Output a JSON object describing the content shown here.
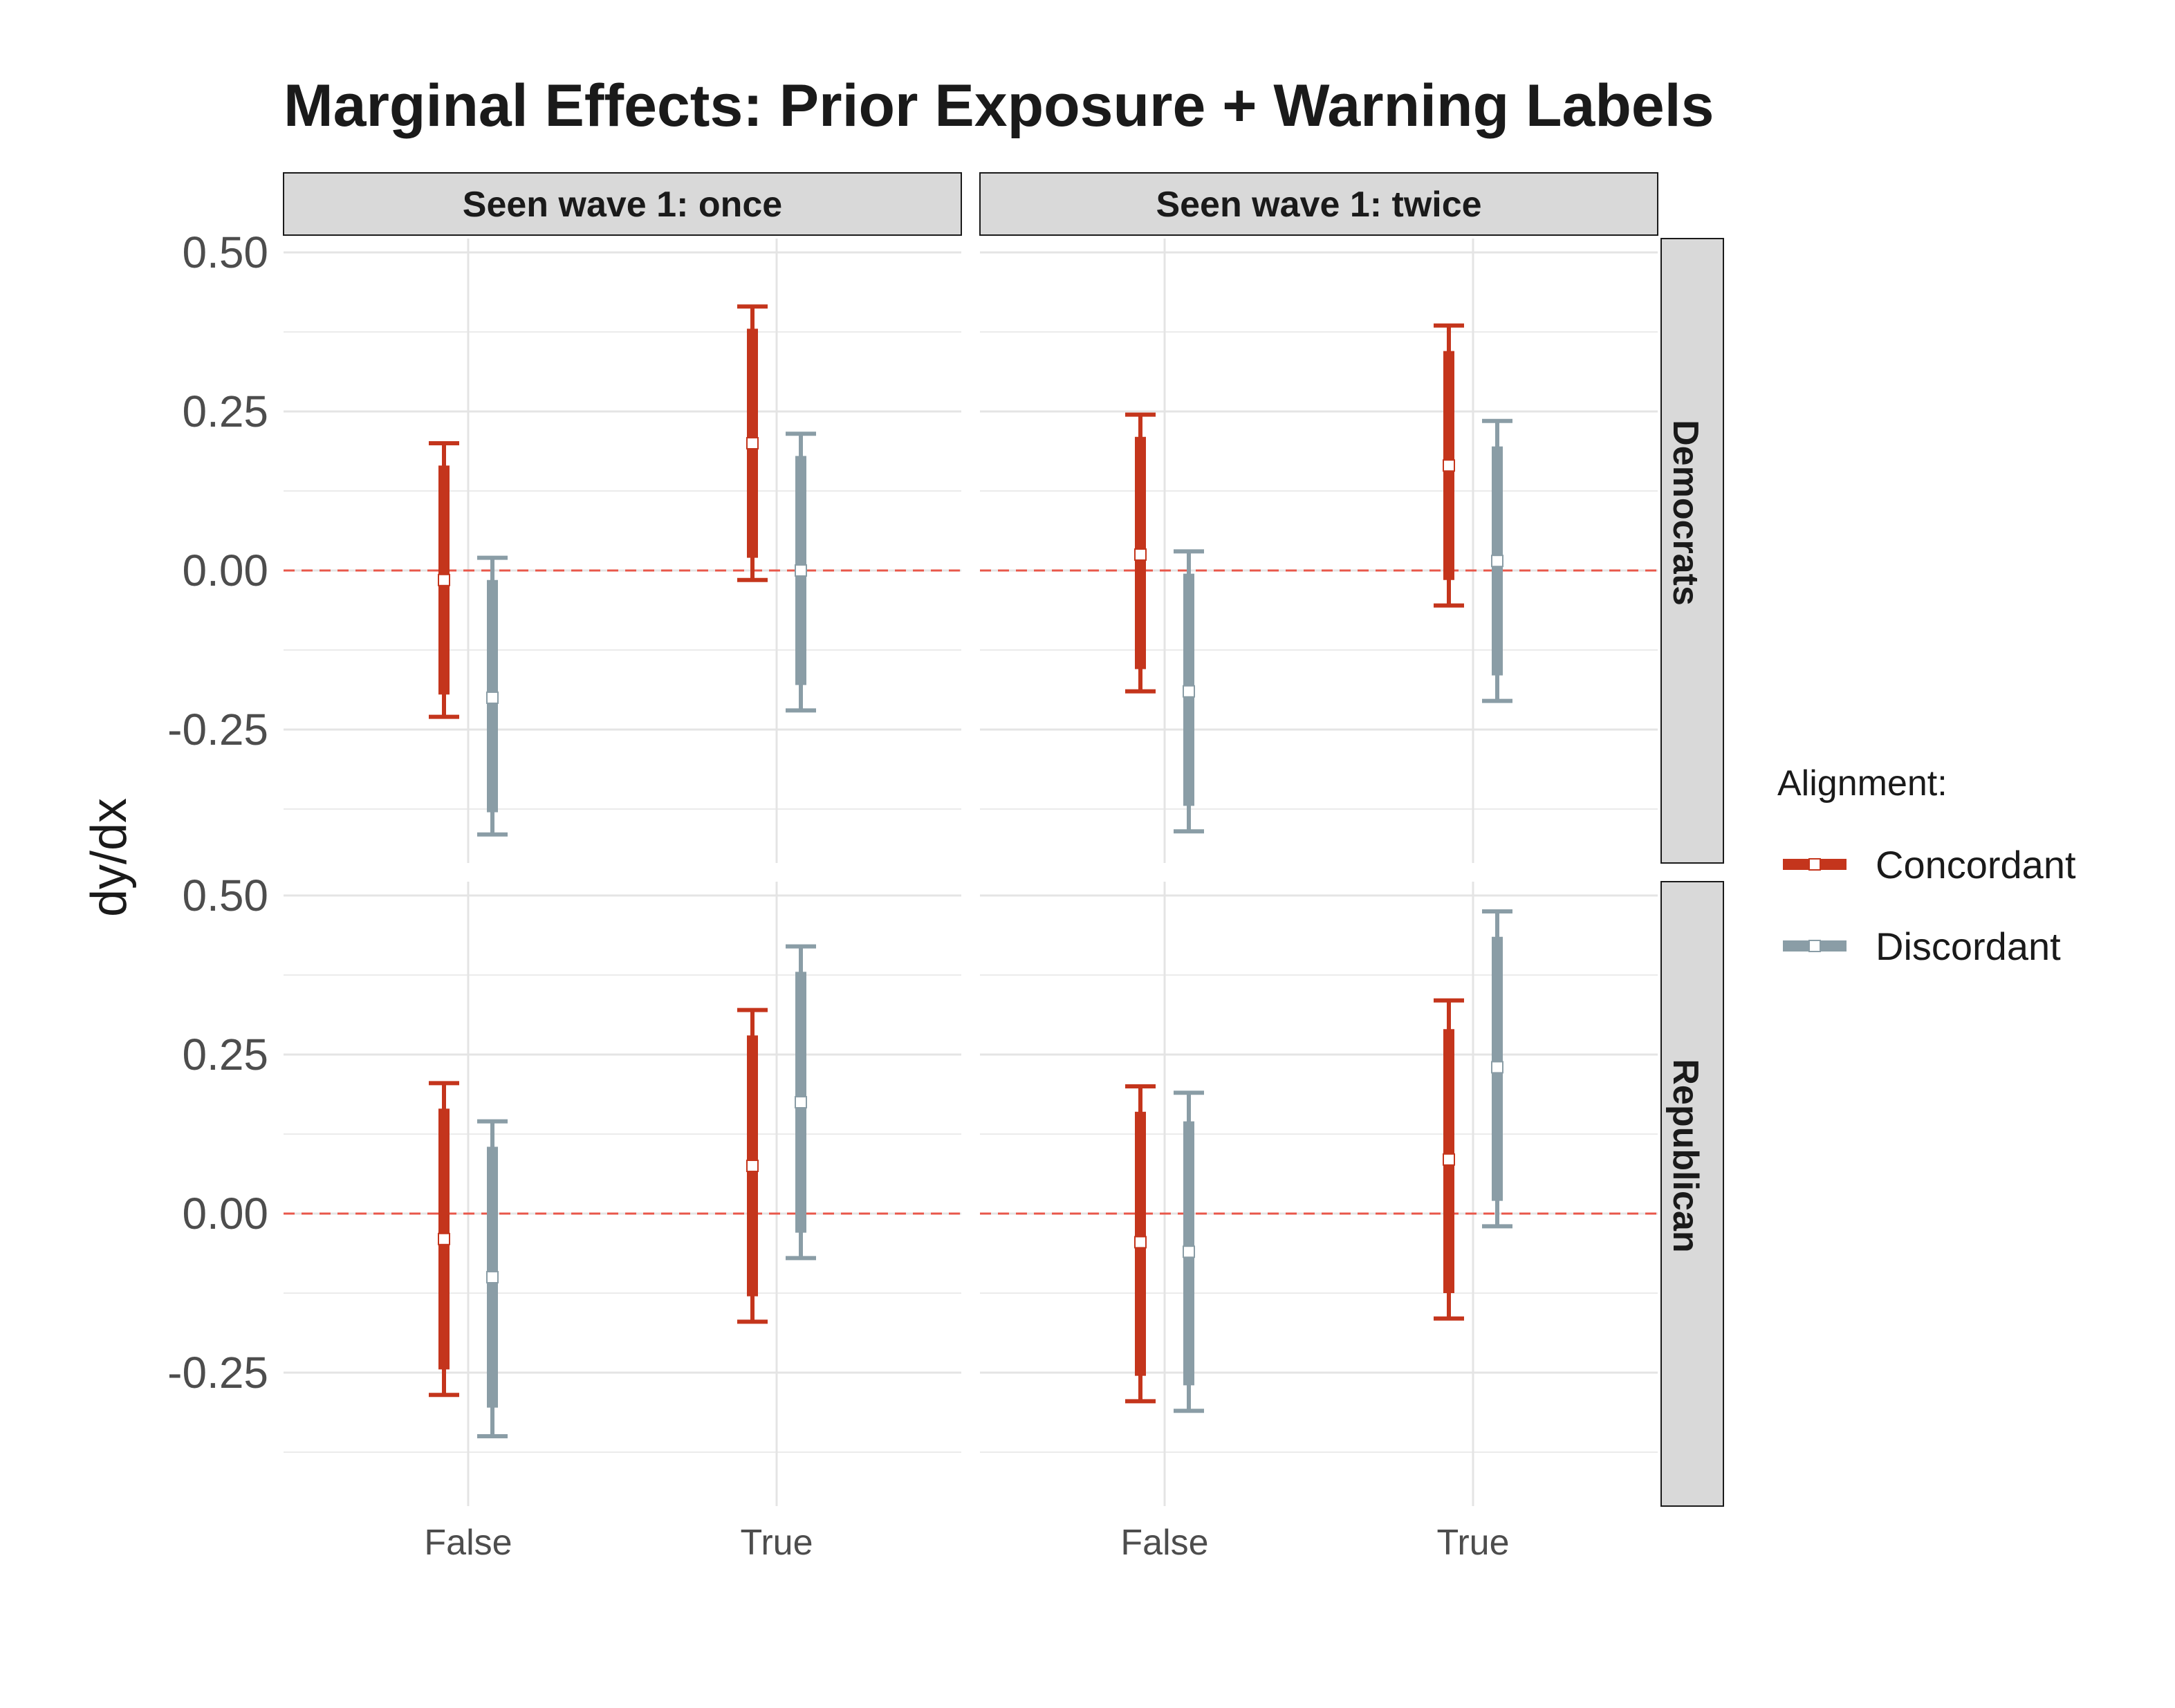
{
  "chart_data": {
    "type": "errorbar",
    "title": "Marginal Effects: Prior Exposure + Warning Labels",
    "ylabel": "dy/dx",
    "xlabel": "",
    "categories": [
      "False",
      "True"
    ],
    "y_ticks": [
      "0.50",
      "0.25",
      "0.00",
      "-0.25"
    ],
    "ylim": [
      -0.43,
      0.52
    ],
    "reference_line": 0,
    "column_facets": [
      "Seen wave 1: once",
      "Seen wave 1: twice"
    ],
    "row_facets": [
      "Democrats",
      "Republican"
    ],
    "legend": {
      "title": "Alignment:",
      "placement": "right",
      "entries": [
        "Concordant",
        "Discordant"
      ]
    },
    "colors": {
      "Concordant": "#c4351c",
      "Discordant": "#8a9da6",
      "reference": "#e8574a"
    },
    "panels": [
      {
        "row": "Democrats",
        "col": "Seen wave 1: once",
        "series": [
          {
            "name": "Concordant",
            "points": [
              {
                "x": "False",
                "est": -0.015,
                "ci90": [
                  -0.195,
                  0.165
                ],
                "ci95": [
                  -0.23,
                  0.2
                ]
              },
              {
                "x": "True",
                "est": 0.2,
                "ci90": [
                  0.02,
                  0.38
                ],
                "ci95": [
                  -0.015,
                  0.415
                ]
              }
            ]
          },
          {
            "name": "Discordant",
            "points": [
              {
                "x": "False",
                "est": -0.2,
                "ci90": [
                  -0.38,
                  -0.015
                ],
                "ci95": [
                  -0.415,
                  0.02
                ]
              },
              {
                "x": "True",
                "est": 0.0,
                "ci90": [
                  -0.18,
                  0.18
                ],
                "ci95": [
                  -0.22,
                  0.215
                ]
              }
            ]
          }
        ]
      },
      {
        "row": "Democrats",
        "col": "Seen wave 1: twice",
        "series": [
          {
            "name": "Concordant",
            "points": [
              {
                "x": "False",
                "est": 0.025,
                "ci90": [
                  -0.155,
                  0.21
                ],
                "ci95": [
                  -0.19,
                  0.245
                ]
              },
              {
                "x": "True",
                "est": 0.165,
                "ci90": [
                  -0.015,
                  0.345
                ],
                "ci95": [
                  -0.055,
                  0.385
                ]
              }
            ]
          },
          {
            "name": "Discordant",
            "points": [
              {
                "x": "False",
                "est": -0.19,
                "ci90": [
                  -0.37,
                  -0.005
                ],
                "ci95": [
                  -0.41,
                  0.03
                ]
              },
              {
                "x": "True",
                "est": 0.015,
                "ci90": [
                  -0.165,
                  0.195
                ],
                "ci95": [
                  -0.205,
                  0.235
                ]
              }
            ]
          }
        ]
      },
      {
        "row": "Republican",
        "col": "Seen wave 1: once",
        "series": [
          {
            "name": "Concordant",
            "points": [
              {
                "x": "False",
                "est": -0.04,
                "ci90": [
                  -0.245,
                  0.165
                ],
                "ci95": [
                  -0.285,
                  0.205
                ]
              },
              {
                "x": "True",
                "est": 0.075,
                "ci90": [
                  -0.13,
                  0.28
                ],
                "ci95": [
                  -0.17,
                  0.32
                ]
              }
            ]
          },
          {
            "name": "Discordant",
            "points": [
              {
                "x": "False",
                "est": -0.1,
                "ci90": [
                  -0.305,
                  0.105
                ],
                "ci95": [
                  -0.35,
                  0.145
                ]
              },
              {
                "x": "True",
                "est": 0.175,
                "ci90": [
                  -0.03,
                  0.38
                ],
                "ci95": [
                  -0.07,
                  0.42
                ]
              }
            ]
          }
        ]
      },
      {
        "row": "Republican",
        "col": "Seen wave 1: twice",
        "series": [
          {
            "name": "Concordant",
            "points": [
              {
                "x": "False",
                "est": -0.045,
                "ci90": [
                  -0.255,
                  0.16
                ],
                "ci95": [
                  -0.295,
                  0.2
                ]
              },
              {
                "x": "True",
                "est": 0.085,
                "ci90": [
                  -0.125,
                  0.29
                ],
                "ci95": [
                  -0.165,
                  0.335
                ]
              }
            ]
          },
          {
            "name": "Discordant",
            "points": [
              {
                "x": "False",
                "est": -0.06,
                "ci90": [
                  -0.27,
                  0.145
                ],
                "ci95": [
                  -0.31,
                  0.19
                ]
              },
              {
                "x": "True",
                "est": 0.23,
                "ci90": [
                  0.02,
                  0.435
                ],
                "ci95": [
                  -0.02,
                  0.475
                ]
              }
            ]
          }
        ]
      }
    ]
  }
}
